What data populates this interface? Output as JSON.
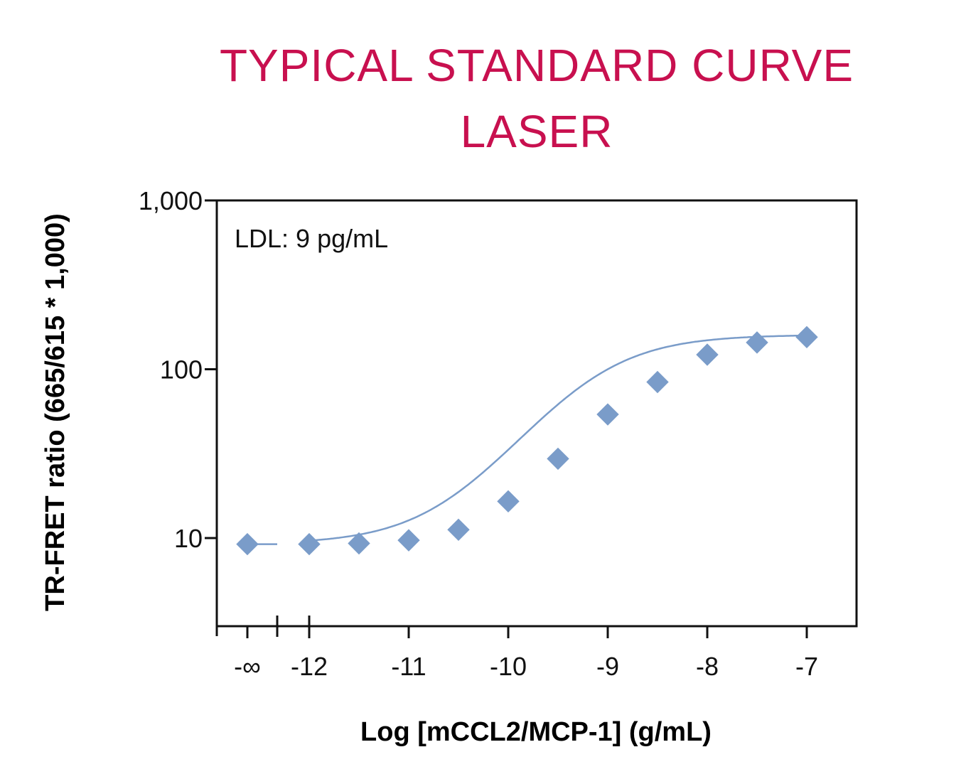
{
  "chart_data": {
    "type": "scatter",
    "title": [
      "TYPICAL STANDARD CURVE",
      "LASER"
    ],
    "xlabel": "Log [mCCL2/MCP-1] (g/mL)",
    "ylabel": "TR-FRET ratio (665/615 * 1,000)",
    "annotation": "LDL: 9 pg/mL",
    "y_scale": "log",
    "ylim": [
      3.3,
      1000
    ],
    "xlim": [
      -12.9,
      -6.5
    ],
    "axis_break": true,
    "x_ticks": [
      {
        "value": "-inf",
        "label": "-∞"
      },
      {
        "value": -12,
        "label": "-12"
      },
      {
        "value": -11,
        "label": "-11"
      },
      {
        "value": -10,
        "label": "-10"
      },
      {
        "value": -9,
        "label": "-9"
      },
      {
        "value": -8,
        "label": "-8"
      },
      {
        "value": -7,
        "label": "-7"
      }
    ],
    "y_ticks": [
      {
        "value": 10,
        "label": "10"
      },
      {
        "value": 100,
        "label": "100"
      },
      {
        "value": 1000,
        "label": "1,000"
      }
    ],
    "series": [
      {
        "color": "#7a9cc9",
        "marker": "diamond",
        "points": [
          {
            "x": "-inf",
            "y": 9.2
          },
          {
            "x": -12,
            "y": 9.2
          },
          {
            "x": -11.5,
            "y": 9.3
          },
          {
            "x": -11,
            "y": 9.7
          },
          {
            "x": -10.5,
            "y": 11.2
          },
          {
            "x": -10,
            "y": 16.5
          },
          {
            "x": -9.5,
            "y": 29.5
          },
          {
            "x": -9,
            "y": 54
          },
          {
            "x": -8.5,
            "y": 84
          },
          {
            "x": -8,
            "y": 122
          },
          {
            "x": -7.5,
            "y": 144
          },
          {
            "x": -7,
            "y": 155
          }
        ],
        "fit": {
          "type": "4PL",
          "bottom": 9.2,
          "top": 160,
          "log_ec50": -9.2,
          "hill": 0.9
        }
      }
    ],
    "grid": false,
    "legend": "none"
  },
  "colors": {
    "title": "#c8104f",
    "series": "#7a9cc9",
    "axis": "#111111"
  }
}
